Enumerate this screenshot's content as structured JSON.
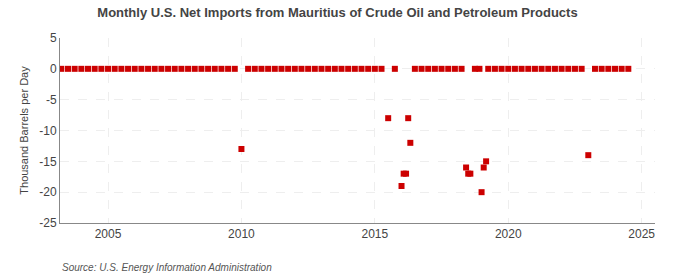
{
  "chart_data": {
    "type": "scatter",
    "title": "Monthly U.S. Net Imports from Mauritius of Crude Oil and Petroleum Products",
    "ylabel": "Thousand Barrels per Day",
    "annotations": [
      "Source: U.S. Energy Information Administration"
    ],
    "color": "#cc0000",
    "marker": "square",
    "grid": true,
    "xlim": [
      2003.2,
      2025.5
    ],
    "ylim": [
      -25,
      5
    ],
    "xticks": [
      2005,
      2010,
      2015,
      2020,
      2025
    ],
    "yticks": [
      -25,
      -20,
      -15,
      -10,
      -5,
      0,
      5
    ],
    "x": [
      2003.25,
      2003.5,
      2003.75,
      2004.0,
      2004.25,
      2004.5,
      2004.75,
      2005.0,
      2005.25,
      2005.5,
      2005.75,
      2006.0,
      2006.25,
      2006.5,
      2006.75,
      2007.0,
      2007.25,
      2007.5,
      2007.75,
      2008.0,
      2008.25,
      2008.5,
      2008.75,
      2009.0,
      2009.25,
      2009.5,
      2009.75,
      2010.0,
      2010.25,
      2010.5,
      2010.75,
      2011.0,
      2011.25,
      2011.5,
      2011.75,
      2012.0,
      2012.25,
      2012.5,
      2012.75,
      2013.0,
      2013.25,
      2013.5,
      2013.75,
      2014.0,
      2014.25,
      2014.5,
      2014.75,
      2015.0,
      2015.25,
      2015.5,
      2015.75,
      2016.0,
      2016.08,
      2016.17,
      2016.25,
      2016.33,
      2016.5,
      2016.75,
      2017.0,
      2017.25,
      2017.5,
      2017.75,
      2018.0,
      2018.25,
      2018.42,
      2018.5,
      2018.58,
      2018.75,
      2018.92,
      2019.0,
      2019.08,
      2019.17,
      2019.25,
      2019.5,
      2019.75,
      2020.0,
      2020.25,
      2020.5,
      2020.75,
      2021.0,
      2021.25,
      2021.5,
      2021.75,
      2022.0,
      2022.25,
      2022.5,
      2022.75,
      2023.0,
      2023.25,
      2023.5,
      2023.75,
      2024.0,
      2024.25,
      2024.5
    ],
    "values": [
      0,
      0,
      0,
      0,
      0,
      0,
      0,
      0,
      0,
      0,
      0,
      0,
      0,
      0,
      0,
      0,
      0,
      0,
      0,
      0,
      0,
      0,
      0,
      0,
      0,
      0,
      0,
      -13,
      0,
      0,
      0,
      0,
      0,
      0,
      0,
      0,
      0,
      0,
      0,
      0,
      0,
      0,
      0,
      0,
      0,
      0,
      0,
      0,
      0,
      -8,
      0,
      -19,
      -17,
      -17,
      -8,
      -12,
      0,
      0,
      0,
      0,
      0,
      0,
      0,
      0,
      -16,
      -17,
      -17,
      0,
      0,
      -20,
      -16,
      -15,
      0,
      0,
      0,
      0,
      0,
      0,
      0,
      0,
      0,
      0,
      0,
      0,
      0,
      0,
      0,
      -14,
      0,
      0,
      0,
      0,
      0,
      0
    ]
  }
}
